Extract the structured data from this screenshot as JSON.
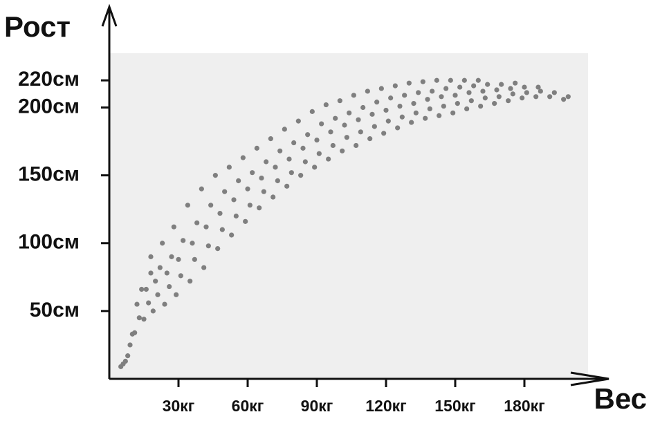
{
  "chart_data": {
    "type": "scatter",
    "x_label": "Вес",
    "y_label": "Рост",
    "color": "#7f7f7f",
    "xlim": [
      0,
      207.6
    ],
    "ylim": [
      0,
      240
    ],
    "xticks": [
      {
        "value": 30,
        "label": "30кг"
      },
      {
        "value": 60,
        "label": "60кг"
      },
      {
        "value": 90,
        "label": "90кг"
      },
      {
        "value": 120,
        "label": "120кг"
      },
      {
        "value": 150,
        "label": "150кг"
      },
      {
        "value": 180,
        "label": "180кг"
      }
    ],
    "yticks": [
      {
        "value": 50,
        "label": "50см"
      },
      {
        "value": 100,
        "label": "100см"
      },
      {
        "value": 150,
        "label": "150см"
      },
      {
        "value": 200,
        "label": "200см"
      },
      {
        "value": 220,
        "label": "220см"
      }
    ],
    "x": [
      5,
      6,
      7,
      8,
      9,
      10,
      11,
      13,
      12,
      14,
      15,
      17,
      16,
      18,
      19,
      21,
      20,
      22,
      18,
      24,
      26,
      25,
      27,
      23,
      29,
      31,
      30,
      32,
      28,
      35,
      37,
      36,
      38,
      34,
      41,
      43,
      42,
      44,
      40,
      47,
      49,
      48,
      50,
      46,
      53,
      55,
      54,
      56,
      52,
      59,
      61,
      60,
      62,
      58,
      65,
      67,
      66,
      68,
      64,
      71,
      73,
      72,
      74,
      70,
      77,
      79,
      78,
      80,
      76,
      83,
      85,
      84,
      86,
      82,
      89,
      91,
      90,
      92,
      88,
      95,
      97,
      96,
      98,
      94,
      101,
      103,
      102,
      104,
      100,
      107,
      109,
      108,
      110,
      106,
      113,
      115,
      114,
      116,
      112,
      119,
      121,
      120,
      122,
      118,
      125,
      127,
      126,
      128,
      124,
      131,
      133,
      132,
      134,
      130,
      137,
      139,
      138,
      140,
      136,
      143,
      145,
      144,
      146,
      142,
      149,
      151,
      150,
      152,
      148,
      155,
      157,
      156,
      158,
      154,
      161,
      163,
      162,
      164,
      160,
      167,
      169,
      168,
      170,
      173,
      175,
      174,
      176,
      179,
      181,
      180,
      185,
      187,
      186,
      191,
      193,
      197,
      199
    ],
    "y": [
      9,
      11,
      13,
      17,
      25,
      33,
      34,
      45,
      55,
      66,
      44,
      56,
      66,
      78,
      50,
      62,
      72,
      82,
      90,
      55,
      68,
      78,
      90,
      100,
      62,
      76,
      88,
      102,
      112,
      72,
      88,
      100,
      115,
      128,
      82,
      98,
      112,
      128,
      140,
      96,
      110,
      122,
      138,
      150,
      106,
      120,
      132,
      146,
      156,
      116,
      128,
      140,
      152,
      163,
      126,
      138,
      148,
      160,
      170,
      134,
      146,
      156,
      168,
      177,
      142,
      152,
      162,
      174,
      184,
      150,
      160,
      170,
      180,
      190,
      156,
      166,
      176,
      188,
      197,
      162,
      172,
      182,
      192,
      202,
      168,
      178,
      187,
      196,
      205,
      172,
      182,
      191,
      200,
      209,
      177,
      186,
      195,
      204,
      212,
      181,
      190,
      198,
      207,
      214,
      185,
      193,
      201,
      209,
      216,
      189,
      196,
      203,
      211,
      218,
      192,
      199,
      206,
      212,
      219,
      194,
      201,
      208,
      214,
      220,
      196,
      203,
      209,
      215,
      220,
      199,
      205,
      211,
      216,
      220,
      201,
      207,
      212,
      217,
      220,
      203,
      208,
      213,
      217,
      205,
      210,
      214,
      218,
      207,
      211,
      215,
      208,
      212,
      215,
      208,
      211,
      206,
      208
    ]
  }
}
